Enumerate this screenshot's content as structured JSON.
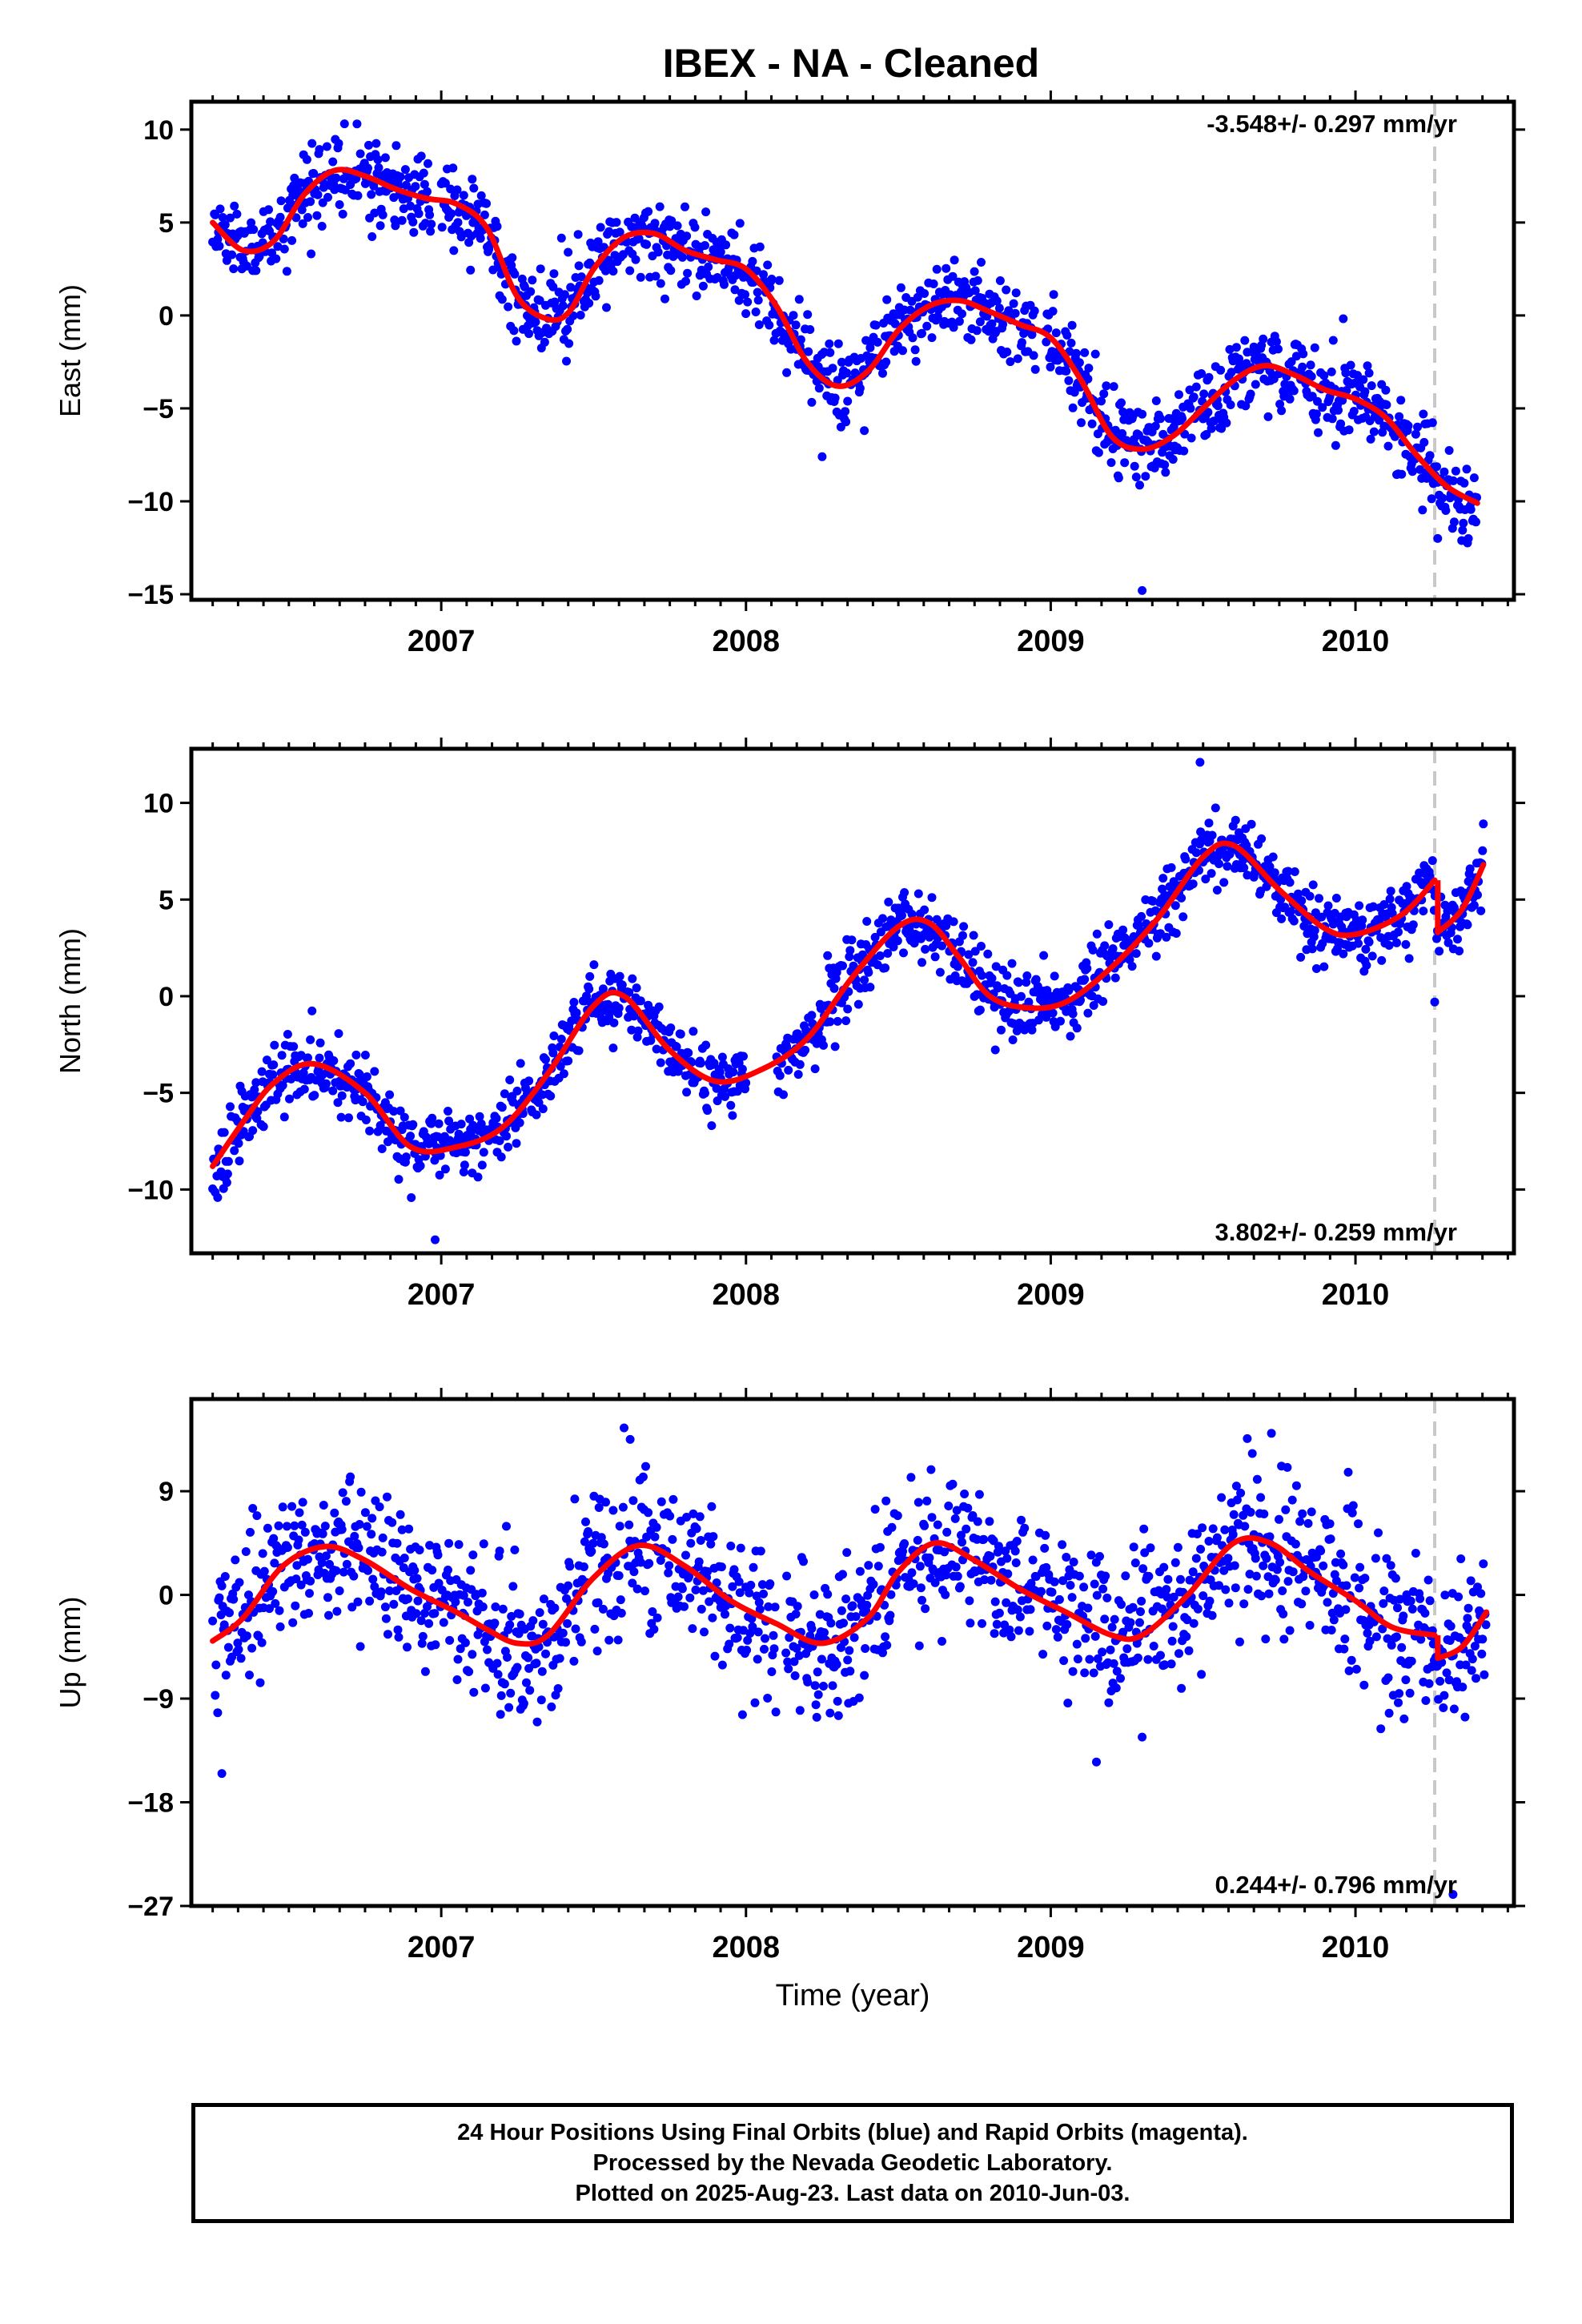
{
  "title": "IBEX  - NA - Cleaned",
  "footer": {
    "line1": "24 Hour Positions Using Final Orbits (blue) and Rapid Orbits (magenta).",
    "line2": "Processed by the Nevada Geodetic Laboratory.",
    "line3": "Plotted on 2025-Aug-23. Last data on 2010-Jun-03."
  },
  "colors": {
    "final_orbits": "#0000ff",
    "model_fit": "#ff0000",
    "marker_line": "#c8c8c8",
    "frame": "#000000"
  },
  "chart_data": [
    {
      "type": "scatter",
      "panel": "east",
      "ylabel": "East (mm)",
      "xlabel": "",
      "xlim": [
        2006.18,
        2010.52
      ],
      "ylim": [
        -15.3,
        11.5
      ],
      "yticks": [
        10,
        5,
        0,
        -5,
        -10,
        -15
      ],
      "xticks": [
        2007,
        2008,
        2009,
        2010
      ],
      "grid": false,
      "rate_text": "-3.548+/- 0.297 mm/yr",
      "rate_position": "top-right",
      "dashed_marker_x": 2010.26,
      "series": [
        {
          "kind": "points",
          "color": "#0000ff",
          "seed": 11,
          "amplitude_mm": 2.2,
          "spread_mm": 1.1,
          "gaps": [
            [
              2006.97,
              2007.0
            ],
            [
              2008.95,
              2008.98
            ]
          ],
          "outliers": [
            [
              2009.3,
              -14.8
            ],
            [
              2010.27,
              -12.0
            ],
            [
              2008.25,
              -7.6
            ]
          ],
          "x": [
            2006.25,
            2006.35,
            2006.45,
            2006.55,
            2006.65,
            2006.75,
            2006.85,
            2006.95,
            2007.05,
            2007.15,
            2007.25,
            2007.35,
            2007.42,
            2007.5,
            2007.6,
            2007.7,
            2007.8,
            2007.9,
            2008.0,
            2008.1,
            2008.2,
            2008.3,
            2008.4,
            2008.5,
            2008.6,
            2008.7,
            2008.8,
            2008.9,
            2009.0,
            2009.1,
            2009.2,
            2009.3,
            2009.4,
            2009.5,
            2009.6,
            2009.7,
            2009.8,
            2009.9,
            2010.0,
            2010.1,
            2010.2,
            2010.3,
            2010.4
          ],
          "y": [
            5.0,
            3.5,
            4.0,
            6.5,
            7.8,
            7.5,
            6.8,
            6.3,
            6.0,
            4.7,
            1.0,
            -0.2,
            0.2,
            2.5,
            4.2,
            4.4,
            3.5,
            3.0,
            2.5,
            0.5,
            -2.5,
            -3.8,
            -3.0,
            -0.8,
            0.5,
            0.8,
            0.2,
            -0.5,
            -1.2,
            -3.5,
            -6.5,
            -7.2,
            -6.5,
            -5.0,
            -3.5,
            -2.7,
            -3.2,
            -4.0,
            -4.5,
            -5.5,
            -7.5,
            -9.2,
            -10.1
          ]
        },
        {
          "kind": "line",
          "name": "",
          "color": "#ff0000",
          "x": [
            2006.25,
            2006.35,
            2006.45,
            2006.55,
            2006.65,
            2006.75,
            2006.85,
            2006.95,
            2007.05,
            2007.15,
            2007.25,
            2007.35,
            2007.42,
            2007.5,
            2007.6,
            2007.7,
            2007.8,
            2007.9,
            2008.0,
            2008.1,
            2008.2,
            2008.3,
            2008.4,
            2008.5,
            2008.6,
            2008.7,
            2008.8,
            2008.9,
            2009.0,
            2009.1,
            2009.2,
            2009.3,
            2009.4,
            2009.5,
            2009.6,
            2009.7,
            2009.8,
            2009.9,
            2010.0,
            2010.1,
            2010.2,
            2010.3,
            2010.4
          ],
          "y": [
            5.0,
            3.5,
            4.0,
            6.5,
            7.8,
            7.5,
            6.8,
            6.3,
            6.0,
            4.7,
            1.0,
            -0.2,
            0.2,
            2.5,
            4.2,
            4.4,
            3.5,
            3.0,
            2.5,
            0.5,
            -2.5,
            -3.8,
            -3.0,
            -0.8,
            0.5,
            0.8,
            0.2,
            -0.5,
            -1.2,
            -3.5,
            -6.5,
            -7.2,
            -6.5,
            -5.0,
            -3.5,
            -2.7,
            -3.2,
            -4.0,
            -4.5,
            -5.5,
            -7.5,
            -9.2,
            -10.1
          ]
        }
      ]
    },
    {
      "type": "scatter",
      "panel": "north",
      "ylabel": "North (mm)",
      "xlabel": "",
      "xlim": [
        2006.18,
        2010.52
      ],
      "ylim": [
        -13.3,
        12.8
      ],
      "yticks": [
        10,
        5,
        0,
        -5,
        -10
      ],
      "xticks": [
        2007,
        2008,
        2009,
        2010
      ],
      "grid": false,
      "rate_text": "3.802+/- 0.259 mm/yr",
      "rate_position": "bottom-right",
      "dashed_marker_x": 2010.26,
      "series": [
        {
          "kind": "points",
          "color": "#0000ff",
          "seed": 23,
          "amplitude_mm": 2.0,
          "spread_mm": 0.9,
          "gaps": [
            [
              2008.0,
              2008.1
            ]
          ],
          "outliers": [
            [
              2006.98,
              -12.6
            ],
            [
              2009.49,
              12.1
            ],
            [
              2010.26,
              -0.3
            ]
          ],
          "x": [
            2006.25,
            2006.35,
            2006.45,
            2006.58,
            2006.75,
            2006.9,
            2007.05,
            2007.2,
            2007.35,
            2007.5,
            2007.6,
            2007.75,
            2007.9,
            2008.05,
            2008.2,
            2008.35,
            2008.5,
            2008.6,
            2008.7,
            2008.8,
            2008.92,
            2009.05,
            2009.2,
            2009.35,
            2009.5,
            2009.6,
            2009.75,
            2009.9,
            2010.0,
            2010.15,
            2010.26,
            2010.27,
            2010.35,
            2010.42
          ],
          "y": [
            -8.8,
            -6.5,
            -4.5,
            -3.5,
            -5.0,
            -7.8,
            -7.8,
            -6.8,
            -4.0,
            -0.5,
            0.0,
            -2.8,
            -4.4,
            -3.8,
            -2.2,
            1.0,
            3.6,
            3.8,
            2.0,
            0.0,
            -0.6,
            -0.3,
            1.5,
            4.0,
            7.2,
            7.8,
            5.5,
            3.5,
            3.2,
            4.2,
            6.0,
            3.3,
            4.5,
            6.8
          ]
        },
        {
          "kind": "line",
          "name": "",
          "color": "#ff0000",
          "x": [
            2006.25,
            2006.35,
            2006.45,
            2006.58,
            2006.75,
            2006.9,
            2007.05,
            2007.2,
            2007.35,
            2007.5,
            2007.6,
            2007.75,
            2007.9,
            2008.05,
            2008.2,
            2008.35,
            2008.5,
            2008.6,
            2008.7,
            2008.8,
            2008.92,
            2009.05,
            2009.2,
            2009.35,
            2009.5,
            2009.6,
            2009.75,
            2009.9,
            2010.0,
            2010.15,
            2010.26,
            2010.27,
            2010.35,
            2010.42
          ],
          "y": [
            -8.8,
            -6.5,
            -4.5,
            -3.5,
            -5.0,
            -7.8,
            -7.8,
            -6.8,
            -4.0,
            -0.5,
            0.0,
            -2.8,
            -4.4,
            -3.8,
            -2.2,
            1.0,
            3.6,
            3.8,
            2.0,
            0.0,
            -0.6,
            -0.3,
            1.5,
            4.0,
            7.2,
            7.8,
            5.5,
            3.5,
            3.2,
            4.2,
            6.0,
            3.3,
            4.5,
            6.8
          ]
        }
      ]
    },
    {
      "type": "scatter",
      "panel": "up",
      "ylabel": "Up (mm)",
      "xlabel": "Time (year)",
      "xlim": [
        2006.18,
        2010.52
      ],
      "ylim": [
        -27,
        17
      ],
      "yticks": [
        9,
        0,
        -9,
        -18,
        -27
      ],
      "xticks": [
        2007,
        2008,
        2009,
        2010
      ],
      "grid": false,
      "rate_text": "0.244+/- 0.796 mm/yr",
      "rate_position": "bottom-right",
      "dashed_marker_x": 2010.26,
      "series": [
        {
          "kind": "points",
          "color": "#0000ff",
          "seed": 37,
          "amplitude_mm": 6.0,
          "spread_mm": 3.2,
          "gaps": [
            [
              2008.1,
              2008.13
            ]
          ],
          "outliers": [
            [
              2006.28,
              -15.5
            ],
            [
              2007.6,
              14.5
            ],
            [
              2009.15,
              -14.5
            ],
            [
              2010.32,
              -26.0
            ],
            [
              2007.62,
              13.5
            ]
          ],
          "x": [
            2006.25,
            2006.35,
            2006.48,
            2006.62,
            2006.75,
            2006.9,
            2007.05,
            2007.15,
            2007.25,
            2007.35,
            2007.5,
            2007.65,
            2007.8,
            2007.95,
            2008.1,
            2008.25,
            2008.4,
            2008.5,
            2008.62,
            2008.75,
            2008.9,
            2009.05,
            2009.2,
            2009.3,
            2009.45,
            2009.6,
            2009.72,
            2009.85,
            2010.0,
            2010.12,
            2010.26,
            2010.27,
            2010.35,
            2010.43
          ],
          "y": [
            -4.0,
            -2.0,
            2.5,
            4.2,
            3.0,
            0.5,
            -1.5,
            -3.0,
            -4.2,
            -3.5,
            1.5,
            4.3,
            2.5,
            -0.5,
            -2.5,
            -4.2,
            -2.0,
            2.0,
            4.5,
            3.0,
            0.5,
            -1.5,
            -3.5,
            -3.5,
            0.0,
            4.5,
            4.5,
            2.0,
            -0.5,
            -2.8,
            -3.5,
            -5.5,
            -4.5,
            -1.5
          ]
        },
        {
          "kind": "line",
          "name": "",
          "color": "#ff0000",
          "x": [
            2006.25,
            2006.35,
            2006.48,
            2006.62,
            2006.75,
            2006.9,
            2007.05,
            2007.15,
            2007.25,
            2007.35,
            2007.5,
            2007.65,
            2007.8,
            2007.95,
            2008.1,
            2008.25,
            2008.4,
            2008.5,
            2008.62,
            2008.75,
            2008.9,
            2009.05,
            2009.2,
            2009.3,
            2009.45,
            2009.6,
            2009.72,
            2009.85,
            2010.0,
            2010.12,
            2010.26,
            2010.27,
            2010.35,
            2010.43
          ],
          "y": [
            -4.0,
            -2.0,
            2.5,
            4.2,
            3.0,
            0.5,
            -1.5,
            -3.0,
            -4.2,
            -3.5,
            1.5,
            4.3,
            2.5,
            -0.5,
            -2.5,
            -4.2,
            -2.0,
            2.0,
            4.5,
            3.0,
            0.5,
            -1.5,
            -3.5,
            -3.5,
            0.0,
            4.5,
            4.5,
            2.0,
            -0.5,
            -2.8,
            -3.5,
            -5.5,
            -4.5,
            -1.5
          ]
        }
      ]
    }
  ]
}
